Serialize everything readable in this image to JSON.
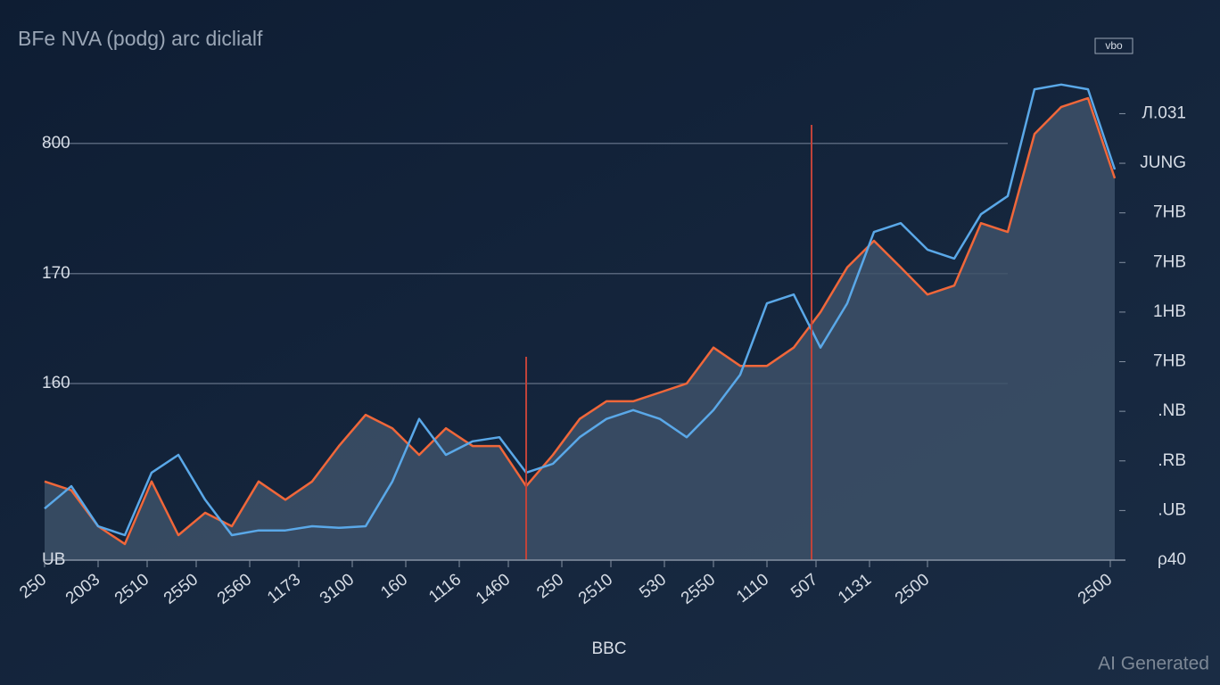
{
  "chart_data": {
    "type": "line",
    "title": "BFe NVA (podg) arc diclialf",
    "x_label": "BBC",
    "badge": "vbo",
    "watermark": "AI Generated",
    "x": [
      0,
      6,
      12,
      18,
      24,
      30,
      36,
      42,
      48,
      54,
      60,
      66,
      72,
      78,
      84,
      90,
      96,
      102,
      108,
      114,
      120,
      126,
      132,
      138,
      144,
      150,
      156,
      162,
      168,
      174,
      180,
      186,
      192,
      198,
      204,
      210,
      216,
      222,
      228,
      234,
      240
    ],
    "xlim": [
      0,
      240
    ],
    "xticks": [
      {
        "value": 0,
        "label": "250"
      },
      {
        "value": 12,
        "label": "2003"
      },
      {
        "value": 23,
        "label": "2510"
      },
      {
        "value": 34,
        "label": "2550"
      },
      {
        "value": 46,
        "label": "2560"
      },
      {
        "value": 57,
        "label": "1173"
      },
      {
        "value": 69,
        "label": "3100"
      },
      {
        "value": 81,
        "label": "160"
      },
      {
        "value": 93,
        "label": "1116"
      },
      {
        "value": 104,
        "label": "1460"
      },
      {
        "value": 116,
        "label": "250"
      },
      {
        "value": 127,
        "label": "2510"
      },
      {
        "value": 139,
        "label": "530"
      },
      {
        "value": 150,
        "label": "2550"
      },
      {
        "value": 162,
        "label": "1110"
      },
      {
        "value": 173,
        "label": "507"
      },
      {
        "value": 185,
        "label": "1131"
      },
      {
        "value": 198,
        "label": "2500"
      },
      {
        "value": 239,
        "label": "2500"
      }
    ],
    "ylim": [
      0,
      1000
    ],
    "yticks": [
      800,
      {
        "value": 550,
        "label": "170"
      },
      {
        "value": 339,
        "label": "160"
      },
      {
        "value": 0,
        "label": "UB"
      }
    ],
    "y2lim": [
      0,
      10.5
    ],
    "y2ticks": [
      {
        "value": 0,
        "label": "ρ40"
      },
      {
        "value": 1,
        "label": ".UB"
      },
      {
        "value": 2,
        "label": ".RB"
      },
      {
        "value": 3,
        "label": ".NB"
      },
      {
        "value": 4,
        "label": "7HB"
      },
      {
        "value": 5,
        "label": "1HB"
      },
      {
        "value": 6,
        "label": "7HB"
      },
      {
        "value": 7,
        "label": "7HB"
      },
      {
        "value": 8,
        "label": "JUNG"
      },
      {
        "value": 9,
        "label": "Л.031"
      }
    ],
    "grid": true,
    "area_color": "#3d5169",
    "series": [
      {
        "color": "#f0673a",
        "area": true,
        "values": [
          151,
          134,
          65,
          31,
          151,
          48,
          91,
          65,
          151,
          116,
          151,
          219,
          279,
          253,
          202,
          253,
          219,
          219,
          142,
          202,
          271,
          305,
          305,
          322,
          339,
          408,
          373,
          373,
          408,
          476,
          562,
          613,
          562,
          510,
          527,
          647,
          630,
          818,
          870,
          887,
          733
        ]
      },
      {
        "color": "#5aa8e8",
        "values": [
          99,
          142,
          65,
          48,
          168,
          202,
          116,
          48,
          57,
          57,
          65,
          62,
          65,
          151,
          271,
          202,
          228,
          236,
          168,
          185,
          236,
          271,
          288,
          271,
          236,
          288,
          356,
          493,
          510,
          408,
          493,
          630,
          647,
          596,
          579,
          664,
          699,
          904,
          913,
          904,
          750
        ]
      }
    ]
  }
}
